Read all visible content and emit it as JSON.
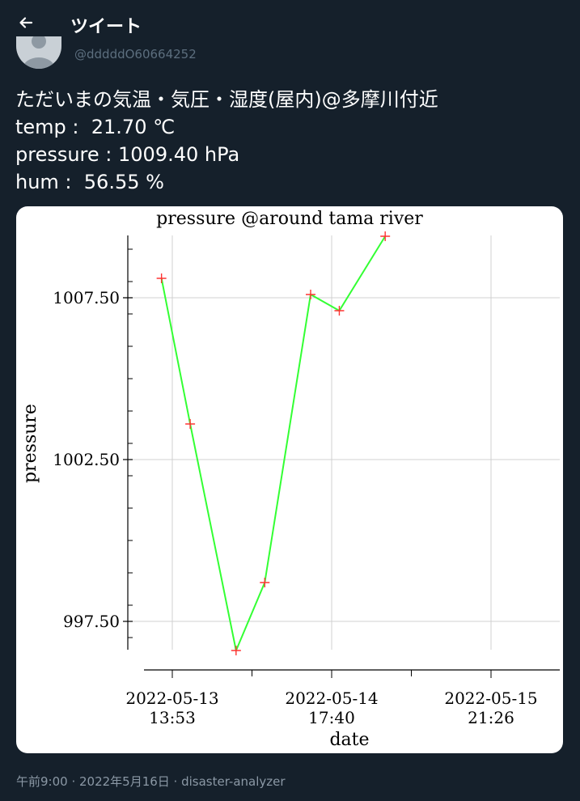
{
  "header": {
    "title": "ツイート",
    "back_icon": "arrow-left-icon"
  },
  "author": {
    "handle": "@dddddO60664252"
  },
  "tweet": {
    "lines": [
      "ただいまの気温・気圧・湿度(屋内)@多摩川付近",
      "temp :  21.70 ℃",
      "pressure : 1009.40 hPa",
      "hum :  56.55 %"
    ]
  },
  "chart_data": {
    "type": "line",
    "title": "pressure @around tama river",
    "xlabel": "date",
    "ylabel": "pressure",
    "x": [
      "2022-05-13 12:00",
      "2022-05-13 17:00",
      "2022-05-14 01:00",
      "2022-05-14 06:00",
      "2022-05-14 14:00",
      "2022-05-14 19:00",
      "2022-05-15 03:00"
    ],
    "series": [
      {
        "values": [
          1008.1,
          1003.6,
          996.6,
          998.7,
          1007.6,
          1007.1,
          1009.4
        ]
      }
    ],
    "xtick_labels": [
      {
        "line1": "2022-05-13",
        "line2": "13:53"
      },
      {
        "line1": "2022-05-14",
        "line2": "17:40"
      },
      {
        "line1": "2022-05-15",
        "line2": "21:26"
      }
    ],
    "ytick_labels": [
      "997.50",
      "1002.50",
      "1007.50"
    ],
    "ytick_values": [
      997.5,
      1002.5,
      1007.5
    ],
    "ylim": [
      995.5,
      1010.0
    ],
    "line_color": "#33ff33",
    "marker_color": "#ff3333",
    "grid": true
  },
  "footer": {
    "meta": "午前9:00 · 2022年5月16日 · disaster-analyzer"
  }
}
